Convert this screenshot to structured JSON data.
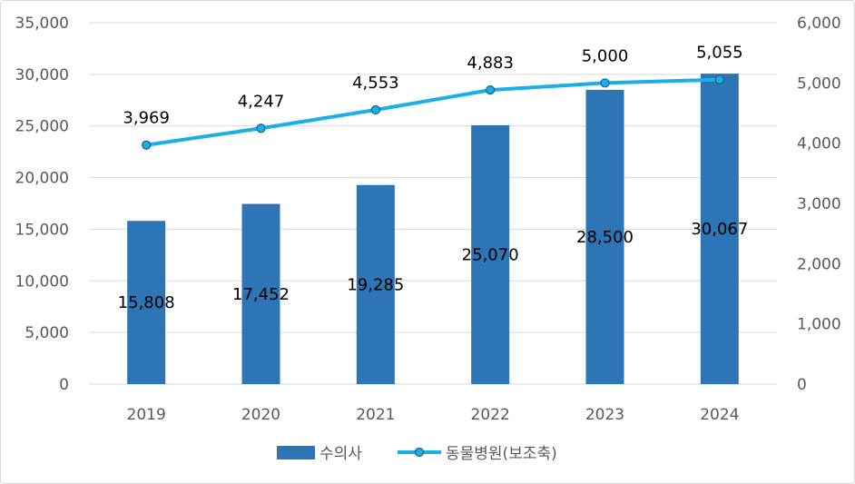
{
  "chart_data": {
    "type": "bar",
    "categories": [
      "2019",
      "2020",
      "2021",
      "2022",
      "2023",
      "2024"
    ],
    "series": [
      {
        "name": "수의사",
        "type": "bar",
        "axis": "left",
        "color": "#2e75b6",
        "values": [
          15808,
          17452,
          19285,
          25070,
          28500,
          30067
        ],
        "labels": [
          "15,808",
          "17,452",
          "19,285",
          "25,070",
          "28,500",
          "30,067"
        ]
      },
      {
        "name": "동물병원(보조축)",
        "type": "line",
        "axis": "right",
        "color": "#1aafe6",
        "values": [
          3969,
          4247,
          4553,
          4883,
          5000,
          5055
        ],
        "labels": [
          "3,969",
          "4,247",
          "4,553",
          "4,883",
          "5,000",
          "5,055"
        ]
      }
    ],
    "left_axis": {
      "ylim": [
        0,
        35000
      ],
      "ticks": [
        "0",
        "5,000",
        "10,000",
        "15,000",
        "20,000",
        "25,000",
        "30,000",
        "35,000"
      ]
    },
    "right_axis": {
      "ylim": [
        0,
        6000
      ],
      "ticks": [
        "0",
        "1,000",
        "2,000",
        "3,000",
        "4,000",
        "5,000",
        "6,000"
      ]
    },
    "grid": true,
    "legend": "bottom",
    "colors": {
      "grid": "#d9d9d9",
      "text": "#595959",
      "bar": "#2e75b6",
      "line": "#1aafe6"
    }
  }
}
